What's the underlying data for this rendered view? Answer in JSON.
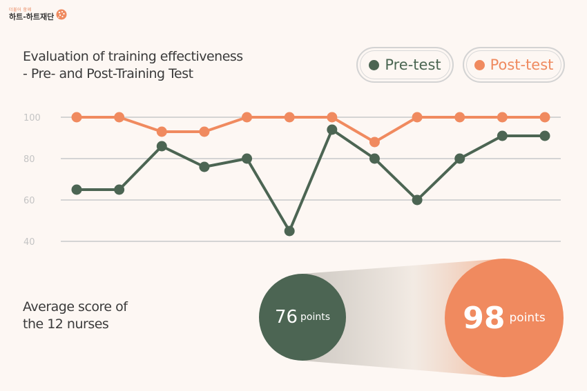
{
  "logo": {
    "subtitle": "더불어 함께",
    "name": "하트-하트재단"
  },
  "title": {
    "line1": "Evaluation of training effectiveness",
    "line2": "- Pre- and Post-Training Test"
  },
  "legend": {
    "pre": "Pre-test",
    "post": "Post-test"
  },
  "colors": {
    "pre": "#4c6553",
    "post": "#f08a5f",
    "grid": "#d4d4d4",
    "background": "#fdf7f3"
  },
  "chart_data": {
    "type": "line",
    "x": [
      1,
      2,
      3,
      4,
      5,
      6,
      7,
      8,
      9,
      10,
      11,
      12
    ],
    "series": [
      {
        "name": "Pre-test",
        "values": [
          65,
          65,
          86,
          76,
          80,
          45,
          94,
          80,
          60,
          80,
          91,
          91
        ]
      },
      {
        "name": "Post-test",
        "values": [
          100,
          100,
          93,
          93,
          100,
          100,
          100,
          88,
          100,
          100,
          100,
          100
        ]
      }
    ],
    "yticks": [
      "100",
      "80",
      "60",
      "40"
    ],
    "ylim": [
      40,
      100
    ],
    "grid": true,
    "legend_position": "top-right"
  },
  "average": {
    "label_line1": "Average score of",
    "label_line2": "the 12 nurses",
    "pre_value": "76",
    "pre_unit": "points",
    "post_value": "98",
    "post_unit": "points"
  }
}
